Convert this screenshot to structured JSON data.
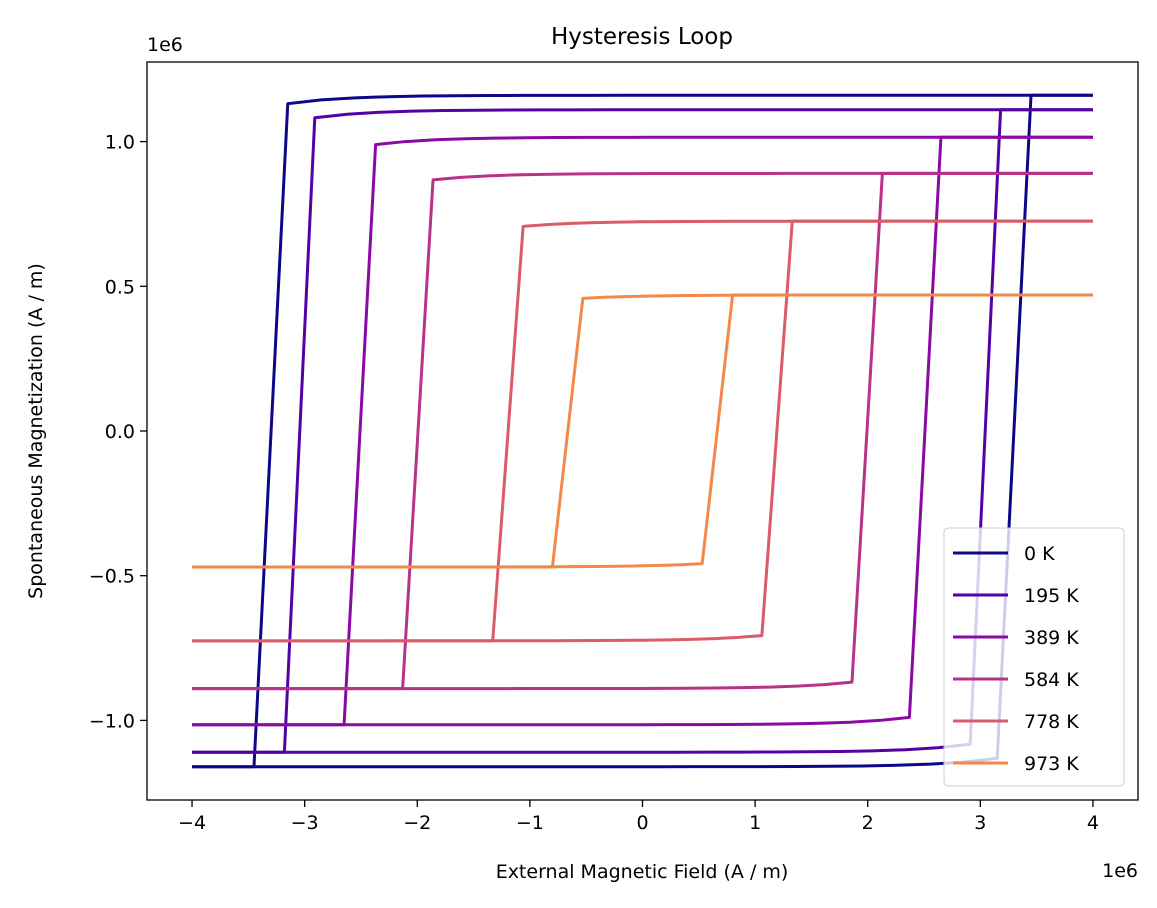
{
  "chart_data": {
    "type": "line",
    "title": "Hysteresis Loop",
    "xlabel": "External Magnetic Field (A / m)",
    "ylabel": "Spontaneous Magnetization (A / m)",
    "x_offset_text": "1e6",
    "y_offset_text": "1e6",
    "xlim": [
      -4.4,
      4.4
    ],
    "ylim": [
      -1.275,
      1.275
    ],
    "x_ticks": [
      -4,
      -3,
      -2,
      -1,
      0,
      1,
      2,
      3,
      4
    ],
    "x_tick_labels": [
      "−4",
      "−3",
      "−2",
      "−1",
      "0",
      "1",
      "2",
      "3",
      "4"
    ],
    "y_ticks": [
      -1.0,
      -0.5,
      0.0,
      0.5,
      1.0
    ],
    "y_tick_labels": [
      "−1.0",
      "−0.5",
      "0.0",
      "0.5",
      "1.0"
    ],
    "grid": false,
    "legend_position": "lower-right",
    "series": [
      {
        "name": "0 K",
        "color": "#0d0887",
        "ms": 1.16,
        "hc": 3.45,
        "drop": 0.3
      },
      {
        "name": "195 K",
        "color": "#5302a3",
        "ms": 1.11,
        "hc": 3.18,
        "drop": 0.27
      },
      {
        "name": "389 K",
        "color": "#8b0aa5",
        "ms": 1.015,
        "hc": 2.65,
        "drop": 0.28
      },
      {
        "name": "584 K",
        "color": "#b83289",
        "ms": 0.89,
        "hc": 2.13,
        "drop": 0.27
      },
      {
        "name": "778 K",
        "color": "#db5c68",
        "ms": 0.725,
        "hc": 1.33,
        "drop": 0.27
      },
      {
        "name": "973 K",
        "color": "#f48849",
        "ms": 0.47,
        "hc": 0.8,
        "drop": 0.27
      }
    ]
  }
}
